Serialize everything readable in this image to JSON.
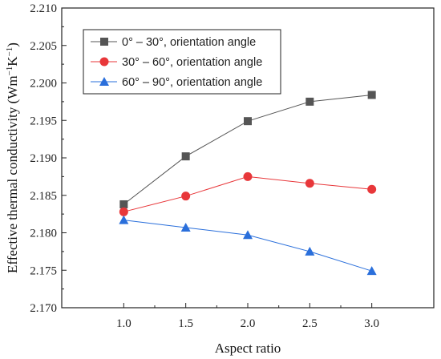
{
  "chart_data": {
    "type": "line",
    "title": "",
    "xlabel": "Aspect ratio",
    "ylabel_main": "Effective thermal conductivity (Wm",
    "ylabel_sup1": "−1",
    "ylabel_mid": "K",
    "ylabel_sup2": "−1",
    "ylabel_end": ")",
    "xlim": [
      0.5,
      3.5
    ],
    "ylim": [
      2.17,
      2.21
    ],
    "x_ticks": [
      "1.0",
      "1.5",
      "2.0",
      "2.5",
      "3.0"
    ],
    "y_ticks": [
      "2.170",
      "2.175",
      "2.180",
      "2.185",
      "2.190",
      "2.195",
      "2.200",
      "2.205",
      "2.210"
    ],
    "x": [
      1.0,
      1.5,
      2.0,
      2.5,
      3.0
    ],
    "series": [
      {
        "name": "0° – 30°, orientation angle",
        "marker": "square",
        "color": "#555555",
        "values": [
          2.1838,
          2.1902,
          2.1949,
          2.1975,
          2.1984
        ]
      },
      {
        "name": "30° – 60°, orientation angle",
        "marker": "circle",
        "color": "#e8373a",
        "values": [
          2.1828,
          2.1849,
          2.1875,
          2.1866,
          2.1858
        ]
      },
      {
        "name": "60° – 90°, orientation angle",
        "marker": "triangle",
        "color": "#2a6fdb",
        "values": [
          2.1817,
          2.1807,
          2.1797,
          2.1775,
          2.1749
        ]
      }
    ],
    "grid": false,
    "legend_position": "top-left"
  }
}
